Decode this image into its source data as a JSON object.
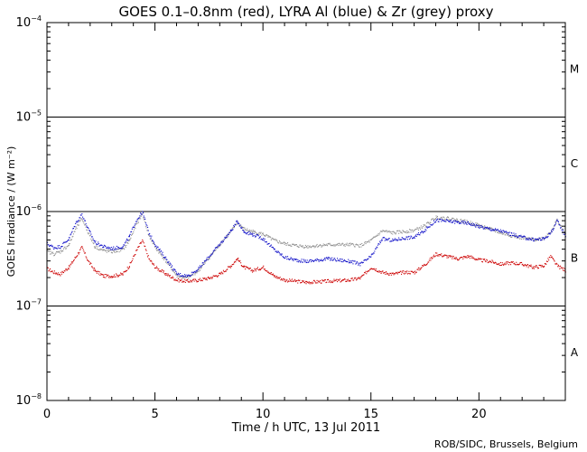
{
  "chart_data": {
    "type": "scatter",
    "title": "GOES 0.1–0.8nm (red), LYRA Al (blue) & Zr (grey) proxy",
    "xlabel": "Time / h UTC, 13 Jul 2011",
    "ylabel": "GOES Irradiance / (W m⁻²)",
    "xlim": [
      0,
      24
    ],
    "ylim": [
      1e-08,
      0.0001
    ],
    "y_scale": "log",
    "x_ticks": [
      0,
      5,
      10,
      15,
      20
    ],
    "y_ticks": [
      {
        "value": 1e-08,
        "base": "10",
        "exp": "−8"
      },
      {
        "value": 1e-07,
        "base": "10",
        "exp": "−7"
      },
      {
        "value": 1e-06,
        "base": "10",
        "exp": "−6"
      },
      {
        "value": 1e-05,
        "base": "10",
        "exp": "−5"
      },
      {
        "value": 0.0001,
        "base": "10",
        "exp": "−4"
      }
    ],
    "flare_class_lines": [
      1e-07,
      1e-06,
      1e-05
    ],
    "flare_classes": [
      {
        "label": "A",
        "y": 3.2e-08
      },
      {
        "label": "B",
        "y": 3.2e-07
      },
      {
        "label": "C",
        "y": 3.2e-06
      },
      {
        "label": "M",
        "y": 3.2e-05
      }
    ],
    "series": [
      {
        "name": "GOES 0.1–0.8nm",
        "color": "#cc0000",
        "x": [
          0,
          0.3,
          0.6,
          1.0,
          1.3,
          1.6,
          1.9,
          2.2,
          2.6,
          3.0,
          3.5,
          3.8,
          4.1,
          4.4,
          4.7,
          5.0,
          5.5,
          6.0,
          6.5,
          7.0,
          7.5,
          8.0,
          8.5,
          8.8,
          9.1,
          9.5,
          10.0,
          10.5,
          11.0,
          11.5,
          12.0,
          13.0,
          14.0,
          14.5,
          15.0,
          15.5,
          16.0,
          16.5,
          17.0,
          17.5,
          18.0,
          18.5,
          19.0,
          19.5,
          20.0,
          20.5,
          21.0,
          21.5,
          22.0,
          22.5,
          23.0,
          23.3,
          23.6,
          24.0
        ],
        "y": [
          2.5e-07,
          2.3e-07,
          2.2e-07,
          2.6e-07,
          3.3e-07,
          4.2e-07,
          3e-07,
          2.4e-07,
          2.1e-07,
          2.1e-07,
          2.2e-07,
          2.7e-07,
          3.8e-07,
          5e-07,
          3.2e-07,
          2.6e-07,
          2.2e-07,
          1.9e-07,
          1.85e-07,
          1.9e-07,
          2e-07,
          2.2e-07,
          2.7e-07,
          3.2e-07,
          2.6e-07,
          2.4e-07,
          2.6e-07,
          2.1e-07,
          1.9e-07,
          1.85e-07,
          1.8e-07,
          1.85e-07,
          1.9e-07,
          2e-07,
          2.6e-07,
          2.3e-07,
          2.2e-07,
          2.3e-07,
          2.3e-07,
          2.8e-07,
          3.6e-07,
          3.4e-07,
          3.2e-07,
          3.4e-07,
          3.1e-07,
          3e-07,
          2.8e-07,
          2.9e-07,
          2.8e-07,
          2.6e-07,
          2.7e-07,
          3.4e-07,
          2.7e-07,
          2.4e-07
        ]
      },
      {
        "name": "LYRA Al",
        "color": "#1010c8",
        "x": [
          0,
          0.3,
          0.6,
          1.0,
          1.3,
          1.6,
          1.9,
          2.2,
          2.6,
          3.0,
          3.5,
          3.8,
          4.1,
          4.4,
          4.7,
          5.0,
          5.5,
          6.0,
          6.5,
          7.0,
          7.5,
          8.0,
          8.5,
          8.8,
          9.1,
          9.5,
          10.0,
          10.5,
          11.0,
          11.5,
          12.0,
          13.0,
          14.0,
          14.5,
          15.0,
          15.5,
          16.0,
          16.5,
          17.0,
          17.5,
          18.0,
          18.5,
          19.0,
          19.5,
          20.0,
          20.5,
          21.0,
          21.5,
          22.0,
          22.5,
          23.0,
          23.3,
          23.6,
          24.0
        ],
        "y": [
          4.6e-07,
          4.2e-07,
          4.3e-07,
          5.2e-07,
          7.5e-07,
          9.5e-07,
          6.5e-07,
          4.8e-07,
          4.3e-07,
          4.1e-07,
          4.3e-07,
          5.5e-07,
          8e-07,
          1e-06,
          6e-07,
          4.5e-07,
          3.2e-07,
          2.2e-07,
          2.1e-07,
          2.5e-07,
          3.4e-07,
          4.6e-07,
          6.3e-07,
          8e-07,
          6.2e-07,
          5.8e-07,
          5.2e-07,
          4e-07,
          3.3e-07,
          3.1e-07,
          3e-07,
          3.2e-07,
          3e-07,
          2.8e-07,
          3.4e-07,
          5.2e-07,
          5e-07,
          5.3e-07,
          5.4e-07,
          6.5e-07,
          8.2e-07,
          8e-07,
          7.8e-07,
          7.6e-07,
          7e-07,
          6.6e-07,
          6.3e-07,
          5.8e-07,
          5.4e-07,
          5.1e-07,
          5.2e-07,
          6e-07,
          8e-07,
          5.5e-07
        ]
      },
      {
        "name": "LYRA Zr",
        "color": "#909090",
        "x": [
          0,
          0.3,
          0.6,
          1.0,
          1.3,
          1.6,
          1.9,
          2.2,
          2.6,
          3.0,
          3.5,
          3.8,
          4.1,
          4.4,
          4.7,
          5.0,
          5.5,
          6.0,
          6.5,
          7.0,
          7.5,
          8.0,
          8.5,
          8.8,
          9.1,
          9.5,
          10.0,
          10.5,
          11.0,
          11.5,
          12.0,
          13.0,
          14.0,
          14.5,
          15.0,
          15.5,
          16.0,
          16.5,
          17.0,
          17.5,
          18.0,
          18.5,
          19.0,
          19.5,
          20.0,
          20.5,
          21.0,
          21.5,
          22.0,
          22.5,
          23.0,
          23.3,
          23.6,
          24.0
        ],
        "y": [
          3.8e-07,
          3.6e-07,
          3.8e-07,
          4.5e-07,
          6.5e-07,
          8.5e-07,
          6e-07,
          4.3e-07,
          3.9e-07,
          3.8e-07,
          4e-07,
          5e-07,
          7.2e-07,
          9.5e-07,
          5.6e-07,
          4.2e-07,
          3e-07,
          2.1e-07,
          2e-07,
          2.4e-07,
          3.3e-07,
          4.6e-07,
          6.2e-07,
          7.8e-07,
          6.6e-07,
          6.2e-07,
          5.8e-07,
          5e-07,
          4.6e-07,
          4.4e-07,
          4.3e-07,
          4.5e-07,
          4.5e-07,
          4.4e-07,
          5e-07,
          6.3e-07,
          6e-07,
          6.2e-07,
          6.4e-07,
          7.2e-07,
          8.8e-07,
          8.6e-07,
          8.2e-07,
          7.8e-07,
          7.2e-07,
          6.6e-07,
          6e-07,
          5.6e-07,
          5.3e-07,
          5.1e-07,
          5.3e-07,
          6.2e-07,
          8.2e-07,
          5.8e-07
        ]
      }
    ]
  },
  "footer": {
    "credit": "ROB/SIDC, Brussels, Belgium"
  }
}
